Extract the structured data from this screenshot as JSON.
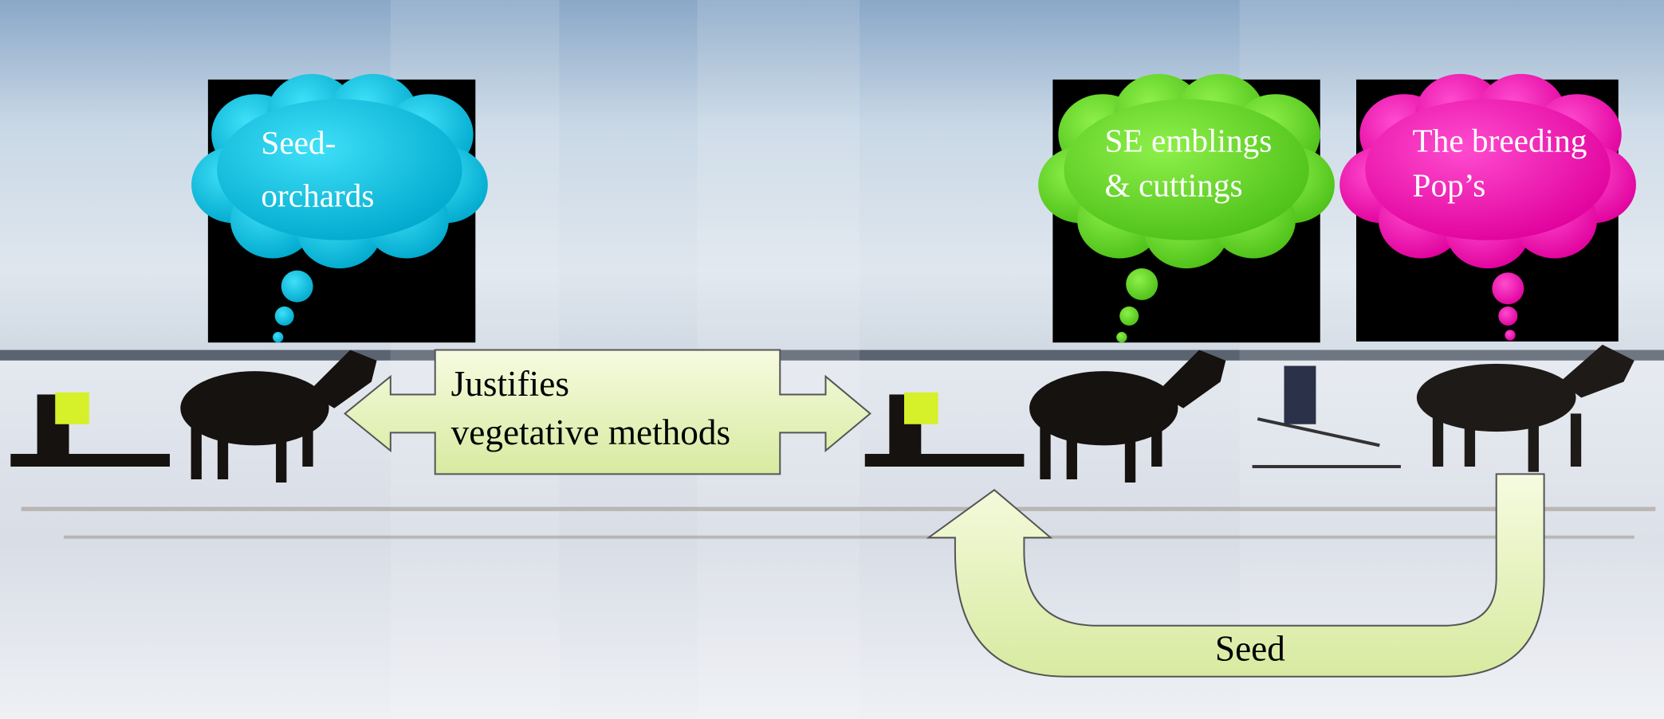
{
  "bubbles": [
    {
      "lines": [
        "Seed-",
        "orchards"
      ]
    },
    {
      "lines": [
        "SE emblings",
        "& cuttings"
      ]
    },
    {
      "lines": [
        "The breeding",
        "Pop’s"
      ]
    }
  ],
  "arrows": {
    "double": {
      "lines": [
        "Justifies",
        "vegetative methods"
      ]
    },
    "cycle": {
      "label": "Seed"
    }
  }
}
